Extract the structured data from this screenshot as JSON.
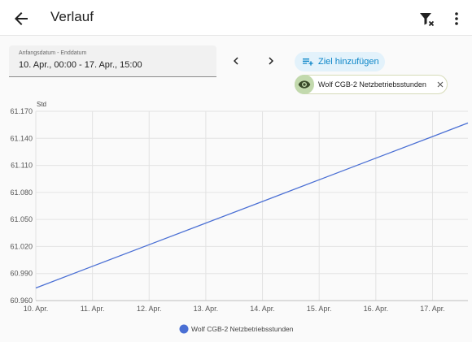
{
  "header": {
    "title": "Verlauf",
    "back_icon": "arrow-left-icon",
    "filter_icon": "filter-remove-icon",
    "menu_icon": "dots-vertical-icon"
  },
  "date_range": {
    "label": "Anfangsdatum - Enddatum",
    "value": "10. Apr., 00:00 - 17. Apr., 15:00",
    "prev_icon": "chevron-left-icon",
    "next_icon": "chevron-right-icon"
  },
  "target": {
    "add_label": "Ziel hinzufügen",
    "add_icon": "playlist-plus-icon",
    "entity_label": "Wolf CGB-2 Netzbetriebsstunden",
    "entity_icon": "eye-icon",
    "remove_icon": "close-icon"
  },
  "colors": {
    "accent": "#0d86c8",
    "series": "#4a6fd4",
    "chip_icon_bg": "#c2d9ad"
  },
  "chart_data": {
    "type": "line",
    "ylabel": "Std",
    "ylim": [
      60960,
      61170
    ],
    "yticks": [
      60960,
      60990,
      61020,
      61050,
      61080,
      61110,
      61140,
      61170
    ],
    "ytick_labels": [
      "60.960",
      "60.990",
      "61.020",
      "61.050",
      "61.080",
      "61.110",
      "61.140",
      "61.170"
    ],
    "xlim": [
      0,
      7.625
    ],
    "xticks": [
      0,
      1,
      2,
      3,
      4,
      5,
      6,
      7
    ],
    "xtick_labels": [
      "10. Apr.",
      "11. Apr.",
      "12. Apr.",
      "13. Apr.",
      "14. Apr.",
      "15. Apr.",
      "16. Apr.",
      "17. Apr."
    ],
    "grid": true,
    "legend": "bottom",
    "series": [
      {
        "name": "Wolf CGB-2 Netzbetriebsstunden",
        "x": [
          0,
          1,
          2,
          3,
          4,
          5,
          6,
          7,
          7.625
        ],
        "y": [
          60974,
          60998,
          61022,
          61046,
          61070,
          61094,
          61118,
          61142,
          61157
        ]
      }
    ]
  }
}
